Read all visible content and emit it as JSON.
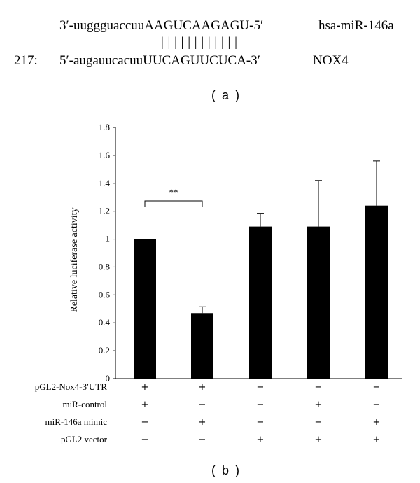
{
  "panel_a": {
    "mirna_seq": "3′-uuggguaccuuAAGUCAAGAGU-5′",
    "mirna_name": "hsa-miR-146a",
    "pairing": "| | | | | | | | | | | |",
    "position": "217:",
    "target_seq": "5′-augauucacuuUUCAGUUCUCA-3′",
    "target_name": "NOX4",
    "label": "( a )"
  },
  "panel_b_label": "( b )",
  "chart_data": {
    "type": "bar",
    "ylabel": "Relative luciferase activity",
    "ylim": [
      0,
      1.8
    ],
    "yticks": [
      "0",
      "0.2",
      "0.4",
      "0.6",
      "0.8",
      "1",
      "1.2",
      "1.4",
      "1.6",
      "1.8"
    ],
    "grid": false,
    "bar_color": "#000000",
    "values": [
      1.0,
      0.47,
      1.09,
      1.09,
      1.24
    ],
    "errors": [
      0.0,
      0.045,
      0.095,
      0.33,
      0.32
    ],
    "significance": {
      "label": "**",
      "between": [
        0,
        1
      ]
    },
    "conditions": [
      {
        "name": "pGL2-Nox4-3′UTR",
        "signs": [
          "+",
          "+",
          "−",
          "−",
          "−"
        ]
      },
      {
        "name": "miR-control",
        "signs": [
          "+",
          "−",
          "−",
          "+",
          "−"
        ]
      },
      {
        "name": "miR-146a mimic",
        "signs": [
          "−",
          "+",
          "−",
          "−",
          "+"
        ]
      },
      {
        "name": "pGL2 vector",
        "signs": [
          "−",
          "−",
          "+",
          "+",
          "+"
        ]
      }
    ]
  }
}
